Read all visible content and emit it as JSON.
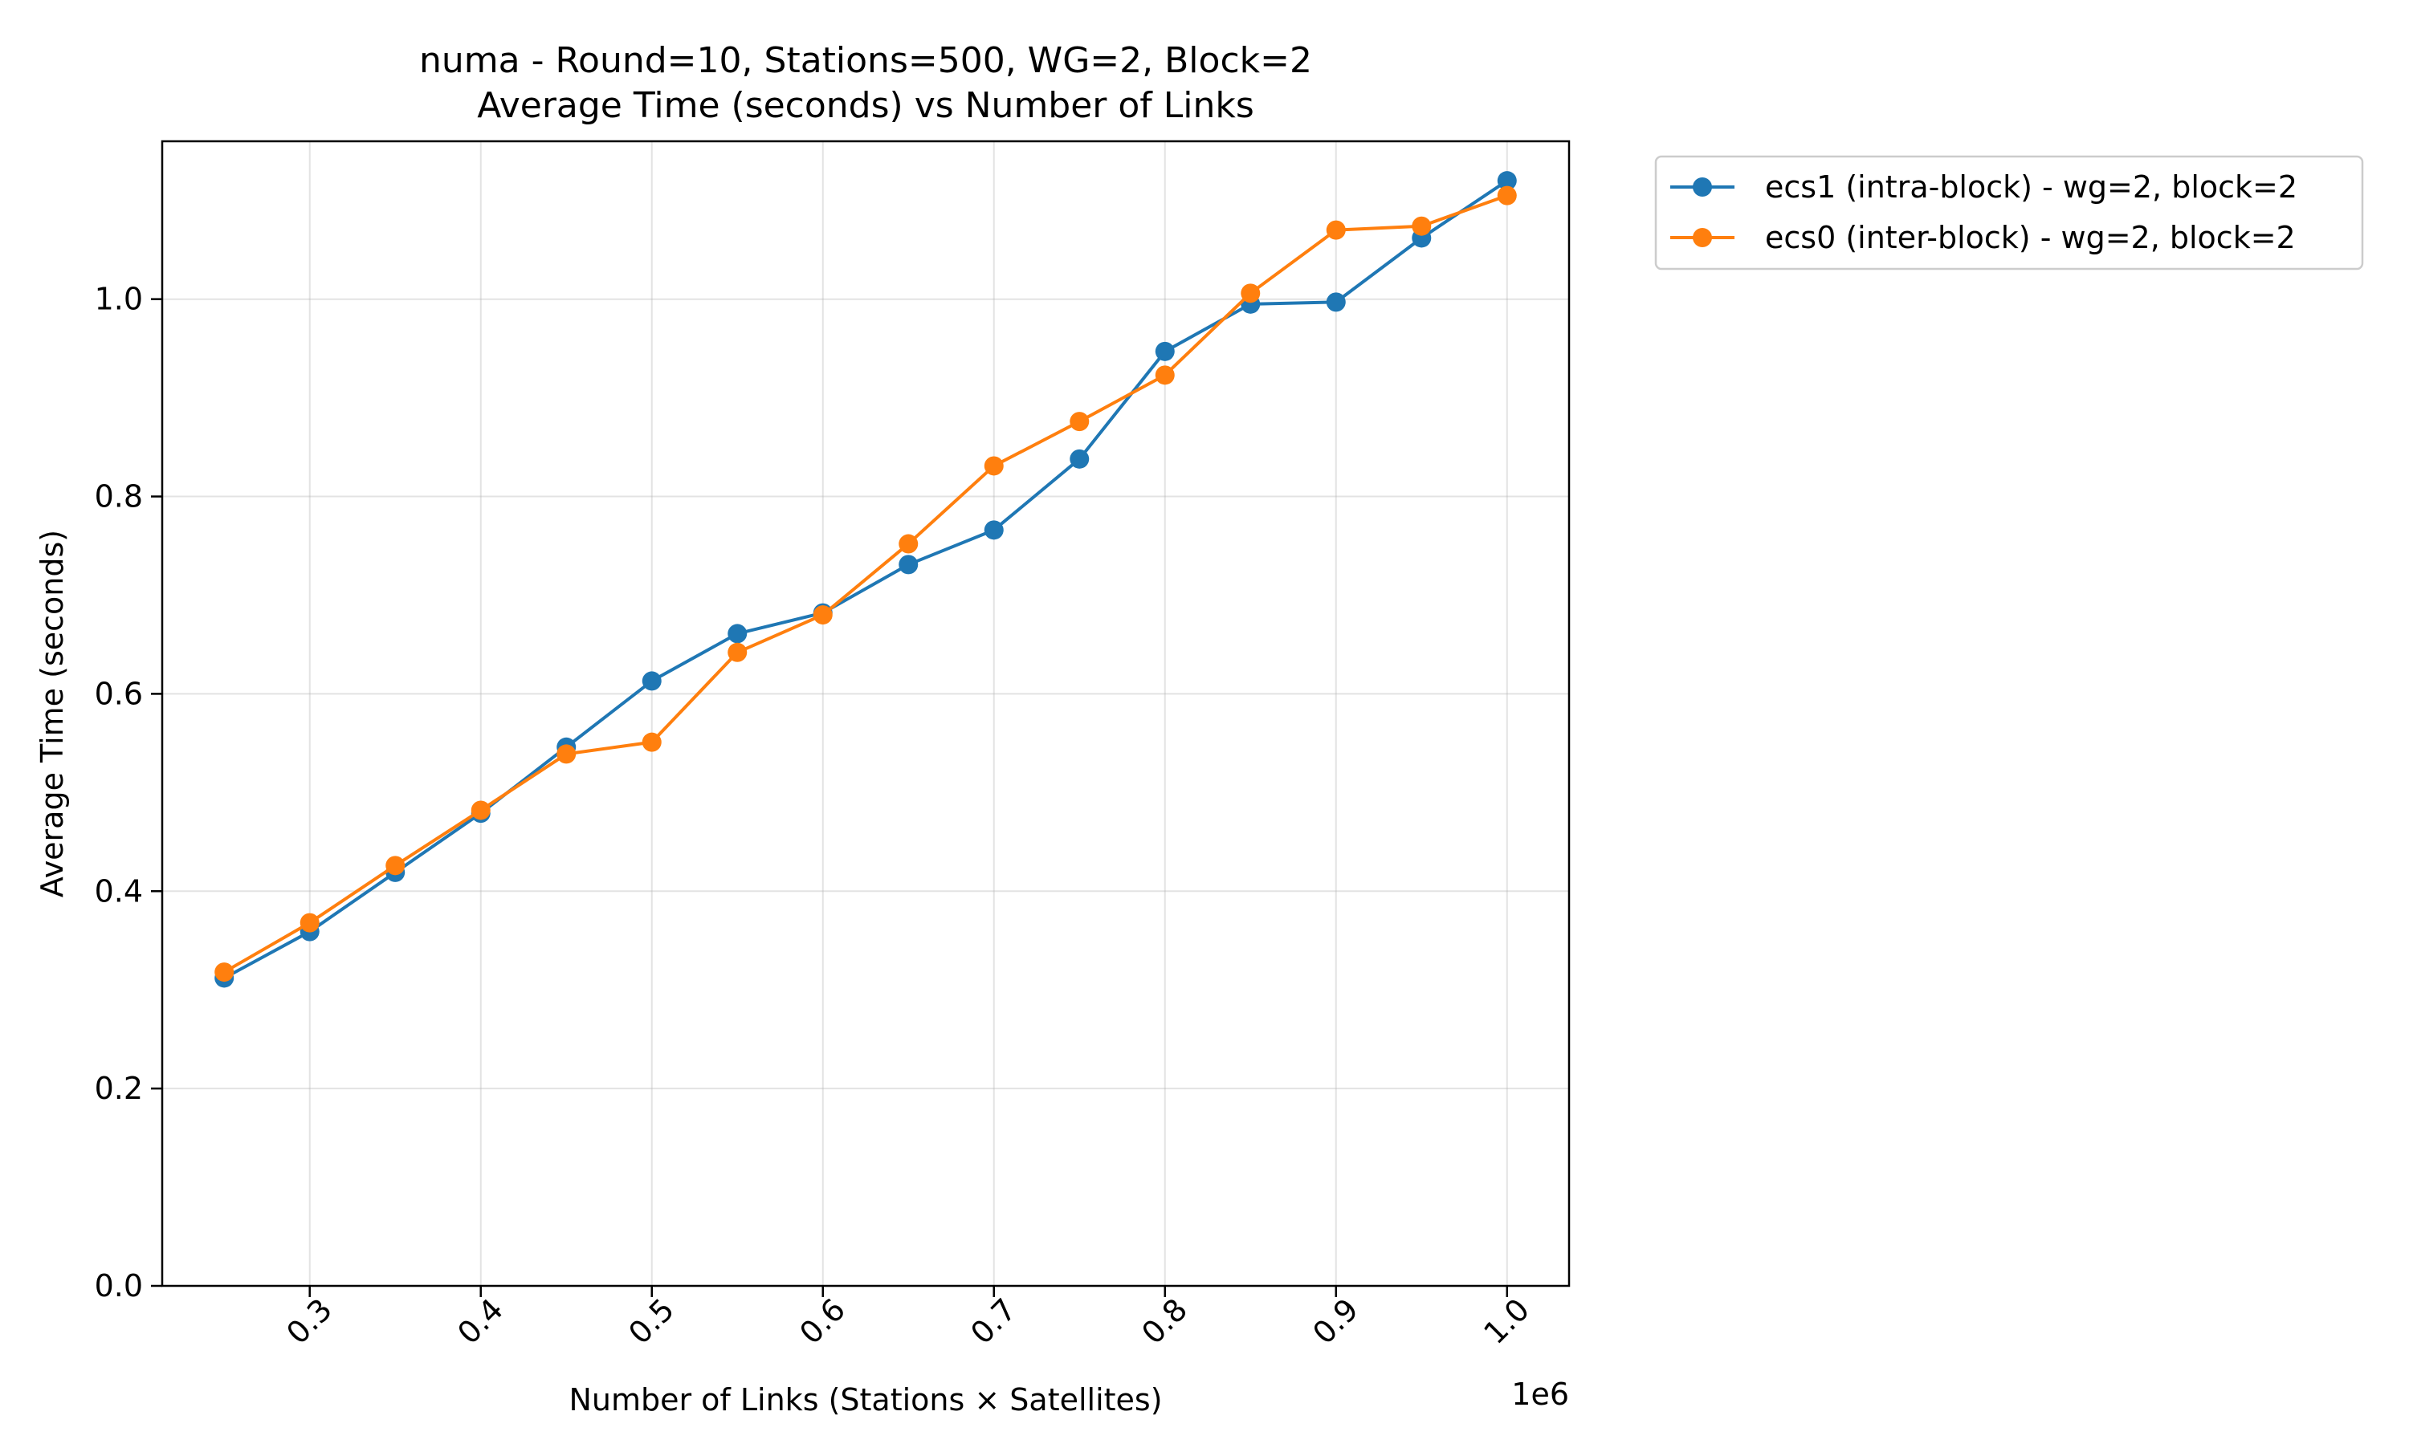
{
  "chart_data": {
    "type": "line",
    "title_line1": "numa - Round=10, Stations=500, WG=2, Block=2",
    "title_line2": "Average Time (seconds) vs Number of Links",
    "xlabel": "Number of Links (Stations × Satellites)",
    "ylabel": "Average Time (seconds)",
    "x_offset_label": "1e6",
    "x_scale": 1000000,
    "xlim": [
      213750,
      1036250
    ],
    "ylim": [
      0,
      1.16
    ],
    "x_ticks": [
      300000,
      400000,
      500000,
      600000,
      700000,
      800000,
      900000,
      1000000
    ],
    "x_tick_labels": [
      "0.3",
      "0.4",
      "0.5",
      "0.6",
      "0.7",
      "0.8",
      "0.9",
      "1.0"
    ],
    "y_ticks": [
      0.0,
      0.2,
      0.4,
      0.6,
      0.8,
      1.0
    ],
    "y_tick_labels": [
      "0.0",
      "0.2",
      "0.4",
      "0.6",
      "0.8",
      "1.0"
    ],
    "grid": true,
    "legend_placement": "outside-top-right",
    "x": [
      250000,
      300000,
      350000,
      400000,
      450000,
      500000,
      550000,
      600000,
      650000,
      700000,
      750000,
      800000,
      850000,
      900000,
      950000,
      1000000
    ],
    "series": [
      {
        "name": "ecs1 (intra-block) - wg=2, block=2",
        "color": "#1f77b4",
        "values": [
          0.312,
          0.359,
          0.419,
          0.479,
          0.546,
          0.613,
          0.661,
          0.682,
          0.731,
          0.766,
          0.838,
          0.947,
          0.995,
          0.997,
          1.062,
          1.12
        ]
      },
      {
        "name": "ecs0 (inter-block) - wg=2, block=2",
        "color": "#ff7f0e",
        "values": [
          0.318,
          0.368,
          0.426,
          0.482,
          0.539,
          0.551,
          0.642,
          0.68,
          0.752,
          0.831,
          0.876,
          0.923,
          1.006,
          1.07,
          1.074,
          1.105
        ]
      }
    ]
  }
}
